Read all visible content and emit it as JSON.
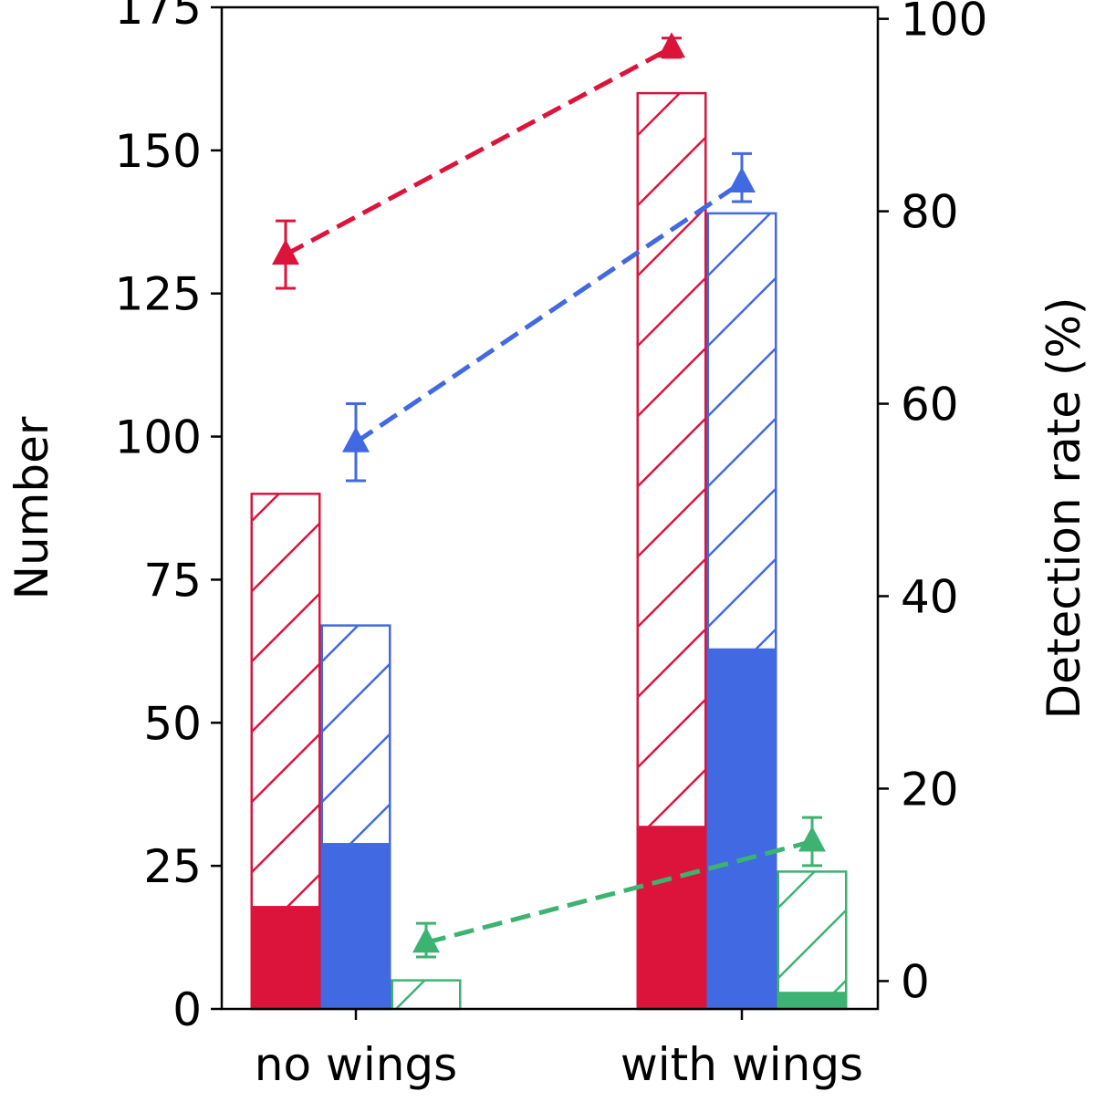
{
  "chart_data": {
    "type": "bar",
    "categories": [
      "no wings",
      "with wings"
    ],
    "ylabel": "Number",
    "y2label": "Detection rate (%)",
    "ylim": [
      0,
      175
    ],
    "y2lim": [
      -2.9,
      101.2
    ],
    "yticks": [
      "0",
      "25",
      "50",
      "75",
      "100",
      "125",
      "150",
      "175"
    ],
    "y2ticks": [
      "0",
      "20",
      "40",
      "60",
      "80",
      "100"
    ],
    "grid": false,
    "series": [
      {
        "color": "#DC143C",
        "total": [
          90,
          160
        ],
        "detected": [
          18,
          32
        ],
        "rate": [
          75.5,
          97
        ],
        "rate_err_low": [
          3.5,
          1
        ],
        "rate_err_high": [
          3.5,
          1
        ]
      },
      {
        "color": "#4169E1",
        "total": [
          67,
          139
        ],
        "detected": [
          29,
          63
        ],
        "rate": [
          56,
          83
        ],
        "rate_err_low": [
          4,
          2
        ],
        "rate_err_high": [
          4,
          3
        ]
      },
      {
        "color": "#3CB371",
        "total": [
          5,
          24
        ],
        "detected": [
          0,
          3
        ],
        "rate": [
          4,
          14.5
        ],
        "rate_err_low": [
          1.5,
          2.5
        ],
        "rate_err_high": [
          2,
          2.5
        ]
      }
    ]
  }
}
